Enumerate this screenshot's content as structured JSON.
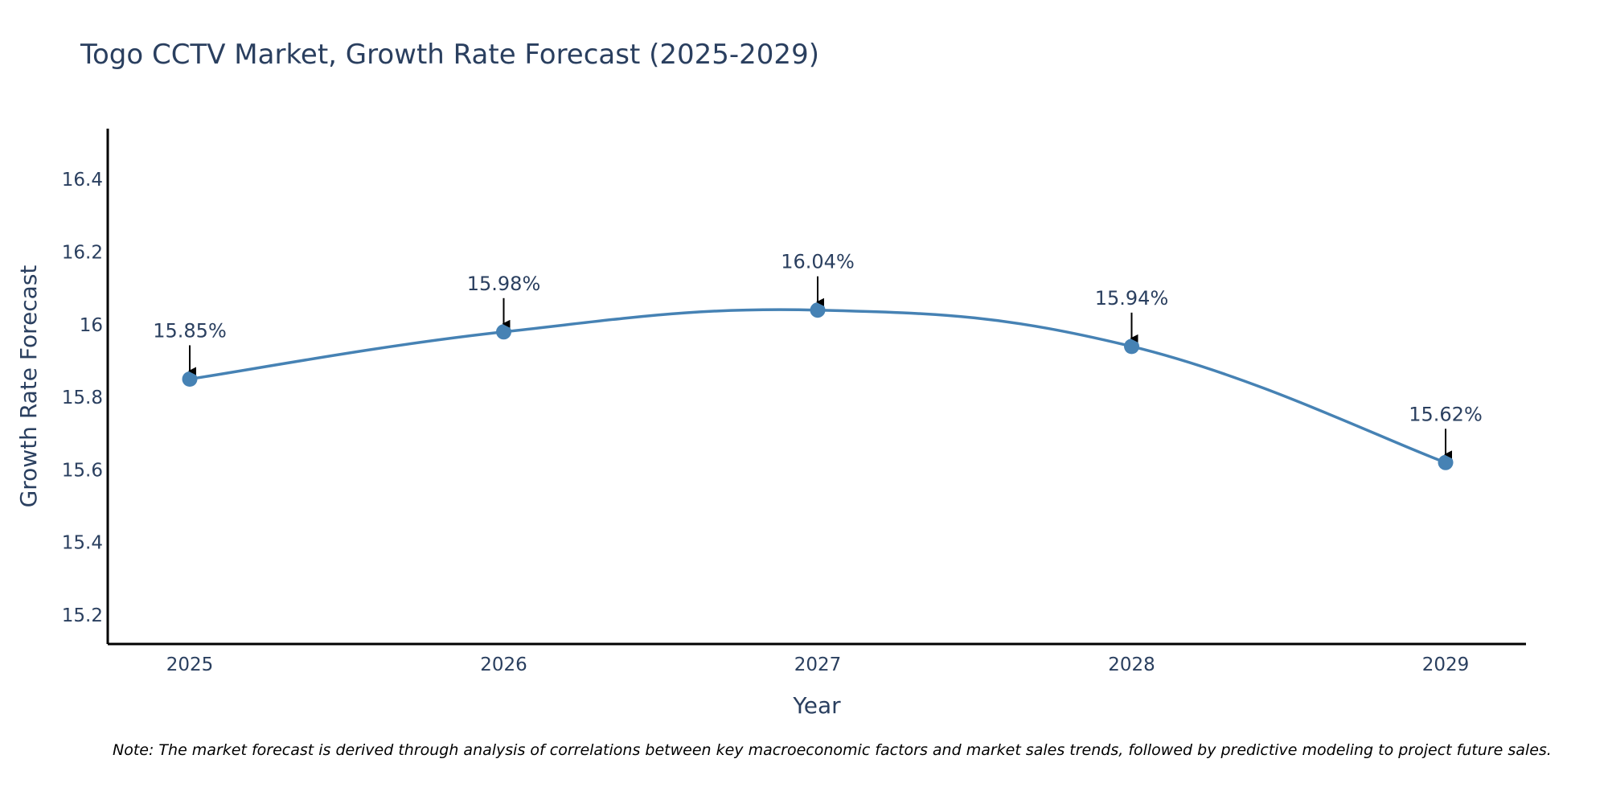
{
  "chart_data": {
    "type": "line",
    "title": "Togo CCTV Market, Growth Rate Forecast (2025-2029)",
    "xlabel": "Year",
    "ylabel": "Growth Rate Forecast",
    "categories": [
      "2025",
      "2026",
      "2027",
      "2028",
      "2029"
    ],
    "values": [
      15.85,
      15.98,
      16.04,
      15.94,
      15.62
    ],
    "data_labels": [
      "15.85%",
      "15.98%",
      "16.04%",
      "15.94%",
      "15.62%"
    ],
    "yticks": [
      15.2,
      15.4,
      15.6,
      15.8,
      16,
      16.2,
      16.4
    ],
    "ytick_labels": [
      "15.2",
      "15.4",
      "15.6",
      "15.8",
      "16",
      "16.2",
      "16.4"
    ],
    "ylim": [
      15.12,
      16.54
    ],
    "grid": false,
    "legend": "none",
    "line_color": "#4682b4",
    "marker_color": "#4682b4",
    "arrow_color": "#000000"
  },
  "footnote": "Note: The market forecast is derived through analysis of correlations between key macroeconomic factors and market sales trends, followed by predictive modeling to project future sales."
}
